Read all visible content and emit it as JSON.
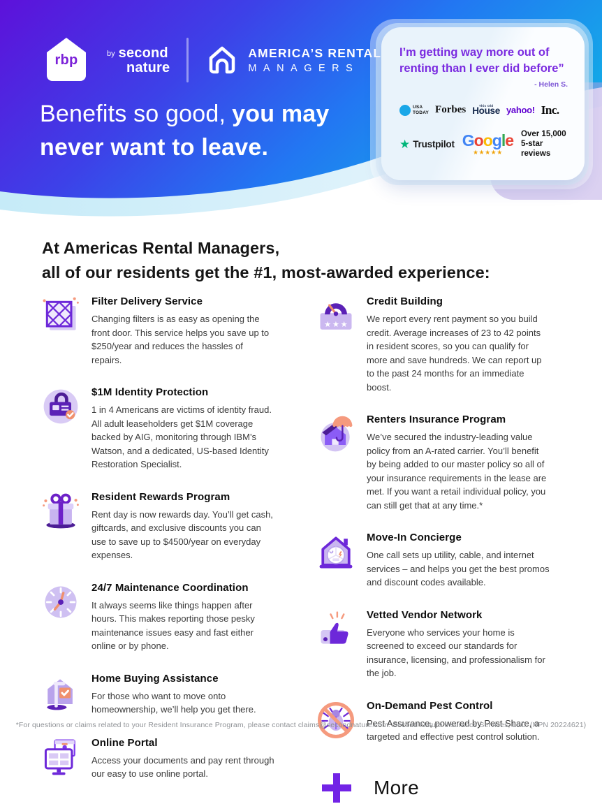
{
  "colors": {
    "hero_purple": "#5d11da",
    "hero_blue": "#2277f2",
    "hero_cyan": "#15a7e9",
    "accent_purple": "#7223e6",
    "brand_teal": "#2ad4cf",
    "quote_purple": "#7a2ae0",
    "coral": "#f0906d",
    "trustpilot_green": "#00b67a",
    "usa_today_blue": "#1aa7e8",
    "yahoo_purple": "#5f01d1",
    "google_star_gold": "#f0a30a"
  },
  "header": {
    "rbp": {
      "badge": "rbp",
      "by": "by",
      "brand1": "second",
      "brand2": "nature"
    },
    "arm": {
      "line1": "AMERICA’S RENTAL",
      "line2": "MANAGERS"
    },
    "headline": {
      "regular": "Benefits so good,",
      "bold1": "you may",
      "bold2": "never want to leave."
    },
    "card": {
      "quote1": "I’m getting way more out of",
      "quote2": "renting than I ever did before”",
      "attribution": "- Helen S.",
      "press": {
        "usa1": "USA",
        "usa2": "TODAY",
        "forbes": "Forbes",
        "house_small": "This Old",
        "house": "House",
        "yahoo": "yahoo!",
        "inc": "Inc."
      },
      "trustpilot": "Trustpilot",
      "google": {
        "letters": [
          "G",
          "o",
          "o",
          "g",
          "l",
          "e"
        ],
        "letter_colors": [
          "#4285F4",
          "#EA4335",
          "#FBBC05",
          "#4285F4",
          "#34A853",
          "#EA4335"
        ],
        "stars": "★★★★★"
      },
      "reviews1": "Over 15,000",
      "reviews2": "5-star reviews"
    }
  },
  "intro": {
    "prefix": "At ",
    "bold": "Americas Rental Managers",
    "suffix": ",",
    "line2": "all of our residents get the #1, most-awarded experience:"
  },
  "benefits": {
    "left": [
      {
        "title": "Filter Delivery Service",
        "desc": "Changing filters is as easy as opening the front door. This service helps you save up to $250/year and reduces the hassles of repairs."
      },
      {
        "title": "$1M Identity Protection",
        "desc": "1 in 4 Americans are victims of identity fraud. All adult leaseholders get $1M coverage backed by AIG, monitoring through IBM’s Watson, and a dedicated, US-based Identity Restoration Specialist."
      },
      {
        "title": "Resident Rewards Program",
        "desc": "Rent day is now rewards day. You’ll get cash, giftcards, and exclusive discounts you can use to save up to $4500/year on everyday expenses."
      },
      {
        "title": "24/7 Maintenance Coordination",
        "desc": "It always seems like things happen after hours. This makes reporting those pesky maintenance issues easy and fast either online or by phone."
      },
      {
        "title": "Home Buying Assistance",
        "desc": "For those who want to move onto homeownership, we’ll help you get there."
      },
      {
        "title": "Online Portal",
        "desc": "Access your documents and pay rent through our easy to use online portal."
      }
    ],
    "right": [
      {
        "title": "Credit Building",
        "desc": "We report every rent payment so you build credit. Average increases of 23 to 42 points in resident scores, so you can qualify for more and save hundreds. We can report up to the past 24 months for an immediate boost."
      },
      {
        "title": "Renters Insurance Program",
        "desc": "We’ve secured the industry-leading value policy from an A-rated carrier. You’ll benefit by being added to our master policy so all of your insurance requirements in the lease are met. If you want a retail individual policy, you can still get that at any time.*"
      },
      {
        "title": "Move-In Concierge",
        "desc": "One call sets up utility, cable, and internet services – and helps you get the best promos and discount codes available."
      },
      {
        "title": "Vetted Vendor Network",
        "desc": "Everyone who services your home is screened to exceed our standards for insurance, licensing, and professionalism for the job."
      },
      {
        "title": "On-Demand Pest Control",
        "desc": "Pest Assurance, powered by Pest Share, a targeted and effective pest control solution."
      }
    ],
    "more": "More"
  },
  "footer": {
    "note": "*For questions or claims related to your Resident Insurance Program, please contact claims@secondnature.com. Second Nature Insurance Services, LLC. (NPN 20224621)"
  }
}
